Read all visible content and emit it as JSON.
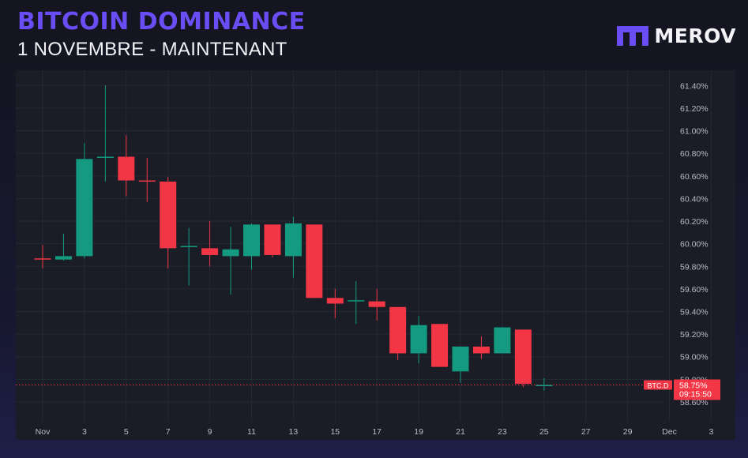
{
  "header": {
    "title": "BITCOIN DOMINANCE",
    "subtitle": "1 NOVEMBRE - MAINTENANT",
    "brand": "MEROV"
  },
  "colors": {
    "brand_purple": "#6a4df5",
    "up": "#159a82",
    "down": "#f23645",
    "background": "#1a1c26"
  },
  "chart_data": {
    "type": "candlestick",
    "symbol": "BTC.D",
    "y_scale": "linear",
    "ylim": [
      58.53,
      61.43
    ],
    "grid": true,
    "y_ticks": [
      "61.40%",
      "61.20%",
      "61.00%",
      "60.80%",
      "60.60%",
      "60.40%",
      "60.20%",
      "60.00%",
      "59.80%",
      "59.60%",
      "59.40%",
      "59.20%",
      "59.00%",
      "58.80%",
      "58.60%"
    ],
    "y_tick_values": [
      61.4,
      61.2,
      61.0,
      60.8,
      60.6,
      60.4,
      60.2,
      60.0,
      59.8,
      59.6,
      59.4,
      59.2,
      59.0,
      58.8,
      58.6
    ],
    "x_ticks": [
      "Nov",
      "3",
      "5",
      "7",
      "9",
      "11",
      "13",
      "15",
      "17",
      "19",
      "21",
      "23",
      "25",
      "27",
      "29",
      "Dec",
      "3"
    ],
    "candles": [
      {
        "date": "2023-11-01",
        "open": 59.87,
        "high": 59.99,
        "low": 59.78,
        "close": 59.86
      },
      {
        "date": "2023-11-02",
        "open": 59.86,
        "high": 60.09,
        "low": 59.85,
        "close": 59.89
      },
      {
        "date": "2023-11-03",
        "open": 59.89,
        "high": 60.89,
        "low": 59.87,
        "close": 60.75
      },
      {
        "date": "2023-11-04",
        "open": 60.76,
        "high": 61.4,
        "low": 60.55,
        "close": 60.77
      },
      {
        "date": "2023-11-05",
        "open": 60.77,
        "high": 60.96,
        "low": 60.42,
        "close": 60.56
      },
      {
        "date": "2023-11-06",
        "open": 60.56,
        "high": 60.76,
        "low": 60.37,
        "close": 60.55
      },
      {
        "date": "2023-11-07",
        "open": 60.55,
        "high": 60.59,
        "low": 59.78,
        "close": 59.96
      },
      {
        "date": "2023-11-08",
        "open": 59.97,
        "high": 60.14,
        "low": 59.63,
        "close": 59.98
      },
      {
        "date": "2023-11-09",
        "open": 59.96,
        "high": 60.2,
        "low": 59.8,
        "close": 59.9
      },
      {
        "date": "2023-11-10",
        "open": 59.89,
        "high": 60.15,
        "low": 59.55,
        "close": 59.95
      },
      {
        "date": "2023-11-11",
        "open": 59.89,
        "high": 60.18,
        "low": 59.77,
        "close": 60.17
      },
      {
        "date": "2023-11-12",
        "open": 60.17,
        "high": 60.17,
        "low": 59.88,
        "close": 59.9
      },
      {
        "date": "2023-11-13",
        "open": 59.89,
        "high": 60.24,
        "low": 59.7,
        "close": 60.18
      },
      {
        "date": "2023-11-14",
        "open": 60.17,
        "high": 60.17,
        "low": 59.52,
        "close": 59.52
      },
      {
        "date": "2023-11-15",
        "open": 59.52,
        "high": 59.6,
        "low": 59.34,
        "close": 59.47
      },
      {
        "date": "2023-11-16",
        "open": 59.49,
        "high": 59.67,
        "low": 59.29,
        "close": 59.5
      },
      {
        "date": "2023-11-17",
        "open": 59.49,
        "high": 59.6,
        "low": 59.32,
        "close": 59.44
      },
      {
        "date": "2023-11-18",
        "open": 59.44,
        "high": 59.44,
        "low": 58.97,
        "close": 59.03
      },
      {
        "date": "2023-11-19",
        "open": 59.03,
        "high": 59.36,
        "low": 58.94,
        "close": 59.28
      },
      {
        "date": "2023-11-20",
        "open": 59.29,
        "high": 59.29,
        "low": 58.91,
        "close": 58.91
      },
      {
        "date": "2023-11-21",
        "open": 58.87,
        "high": 59.09,
        "low": 58.77,
        "close": 59.09
      },
      {
        "date": "2023-11-22",
        "open": 59.09,
        "high": 59.18,
        "low": 58.98,
        "close": 59.03
      },
      {
        "date": "2023-11-23",
        "open": 59.03,
        "high": 59.26,
        "low": 59.03,
        "close": 59.26
      },
      {
        "date": "2023-11-24",
        "open": 59.24,
        "high": 59.24,
        "low": 58.73,
        "close": 58.76
      },
      {
        "date": "2023-11-25",
        "open": 58.75,
        "high": 58.81,
        "low": 58.7,
        "close": 58.75
      }
    ],
    "price_tag": {
      "symbol_label": "BTC.D",
      "value_label": "58.75%",
      "timer_label": "09:15:50",
      "value": 58.75
    }
  }
}
